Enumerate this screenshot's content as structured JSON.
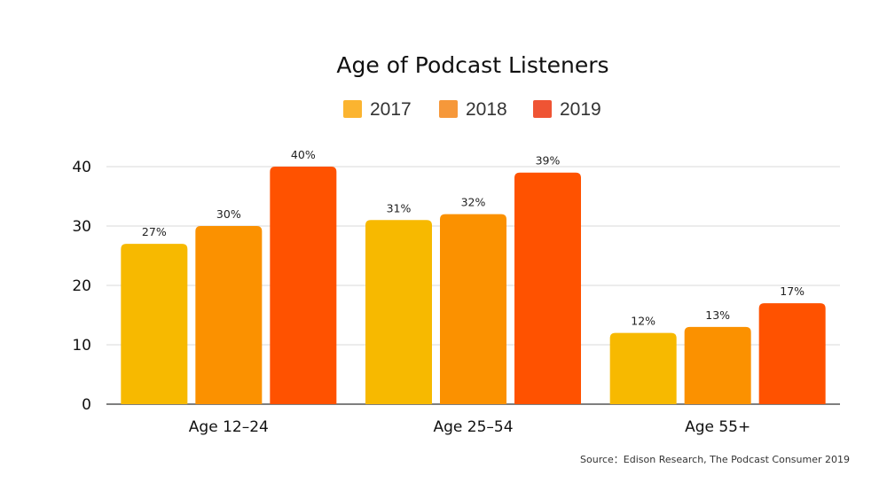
{
  "chart_data": {
    "type": "bar",
    "title": "Age of Podcast Listeners",
    "categories": [
      "Age 12–24",
      "Age 25–54",
      "Age 55+"
    ],
    "series": [
      {
        "name": "2017",
        "values": [
          27,
          31,
          12
        ],
        "labels": [
          "27%",
          "31%",
          "12%"
        ],
        "color": "#f7b900"
      },
      {
        "name": "2018",
        "values": [
          30,
          32,
          13
        ],
        "labels": [
          "30%",
          "32%",
          "13%"
        ],
        "color": "#fb9100"
      },
      {
        "name": "2019",
        "values": [
          40,
          39,
          17
        ],
        "labels": [
          "40%",
          "39%",
          "17%"
        ],
        "color": "#ff5200"
      }
    ],
    "legend_colors": [
      "#fbb430",
      "#f6983a",
      "#ef5434"
    ],
    "yticks": [
      "0",
      "10",
      "20",
      "30",
      "40"
    ],
    "ylim": [
      0,
      40
    ],
    "grid": true,
    "legend_position": "top-center",
    "source": "Source：Edison Research, The Podcast Consumer 2019"
  }
}
